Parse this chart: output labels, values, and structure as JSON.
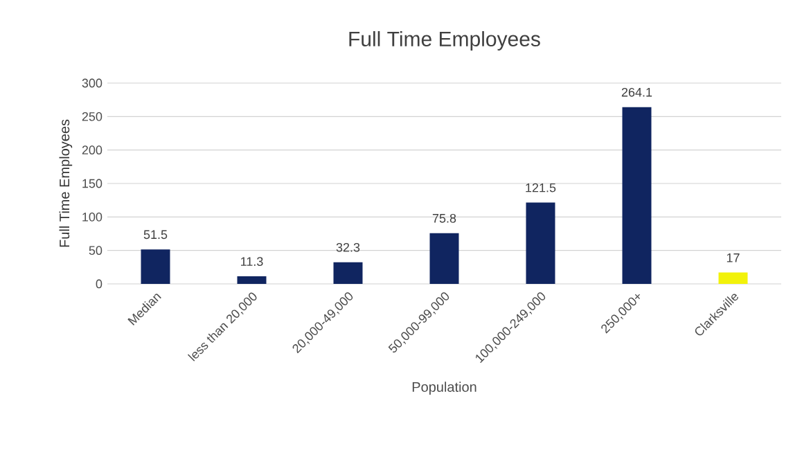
{
  "chart_data": {
    "type": "bar",
    "title": "Full Time Employees",
    "xlabel": "Population",
    "ylabel": "Full Time Employees",
    "categories": [
      "Median",
      "less than 20,000",
      "20,000-49,000",
      "50,000-99,000",
      "100,000-249,000",
      "250,000+",
      "Clarksville"
    ],
    "values": [
      51.5,
      11.3,
      32.3,
      75.8,
      121.5,
      264.1,
      17
    ],
    "colors": [
      "#102560",
      "#102560",
      "#102560",
      "#102560",
      "#102560",
      "#102560",
      "#f2f20a"
    ],
    "ylim": [
      0,
      300
    ],
    "yticks": [
      0,
      50,
      100,
      150,
      200,
      250,
      300
    ],
    "grid": "y",
    "data_labels": true
  }
}
